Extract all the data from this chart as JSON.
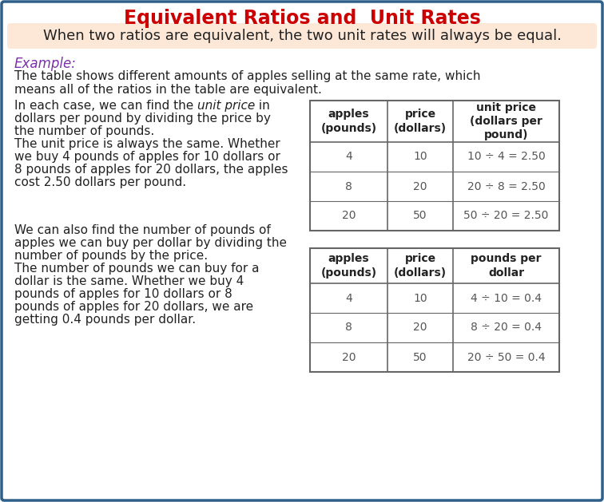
{
  "title": "Equivalent Ratios and  Unit Rates",
  "title_color": "#cc0000",
  "bg_color": "#ffffff",
  "border_color": "#2e5f8a",
  "highlight_bg": "#fde8d8",
  "highlight_text": "When two ratios are equivalent, the two unit rates will always be equal.",
  "example_label": "Example:",
  "example_color": "#7b2fa8",
  "intro_text1": "The table shows different amounts of apples selling at the same rate, which",
  "intro_text2": "means all of the ratios in the table are equivalent.",
  "text_color": "#222222",
  "table_data_color": "#555555",
  "table1_headers": [
    "apples\n(pounds)",
    "price\n(dollars)",
    "unit price\n(dollars per\npound)"
  ],
  "table1_rows": [
    [
      "4",
      "10",
      "10 ÷ 4 = 2.50"
    ],
    [
      "8",
      "20",
      "20 ÷ 8 = 2.50"
    ],
    [
      "20",
      "50",
      "50 ÷ 20 = 2.50"
    ]
  ],
  "table2_headers": [
    "apples\n(pounds)",
    "price\n(dollars)",
    "pounds per\ndollar"
  ],
  "table2_rows": [
    [
      "4",
      "10",
      "4 ÷ 10 = 0.4"
    ],
    [
      "8",
      "20",
      "8 ÷ 20 = 0.4"
    ],
    [
      "20",
      "50",
      "20 ÷ 50 = 0.4"
    ]
  ],
  "table_border_color": "#666666",
  "font_size_title": 17,
  "font_size_highlight": 13,
  "font_size_example": 12,
  "font_size_body": 11,
  "font_size_table_header": 10,
  "font_size_table_data": 10
}
